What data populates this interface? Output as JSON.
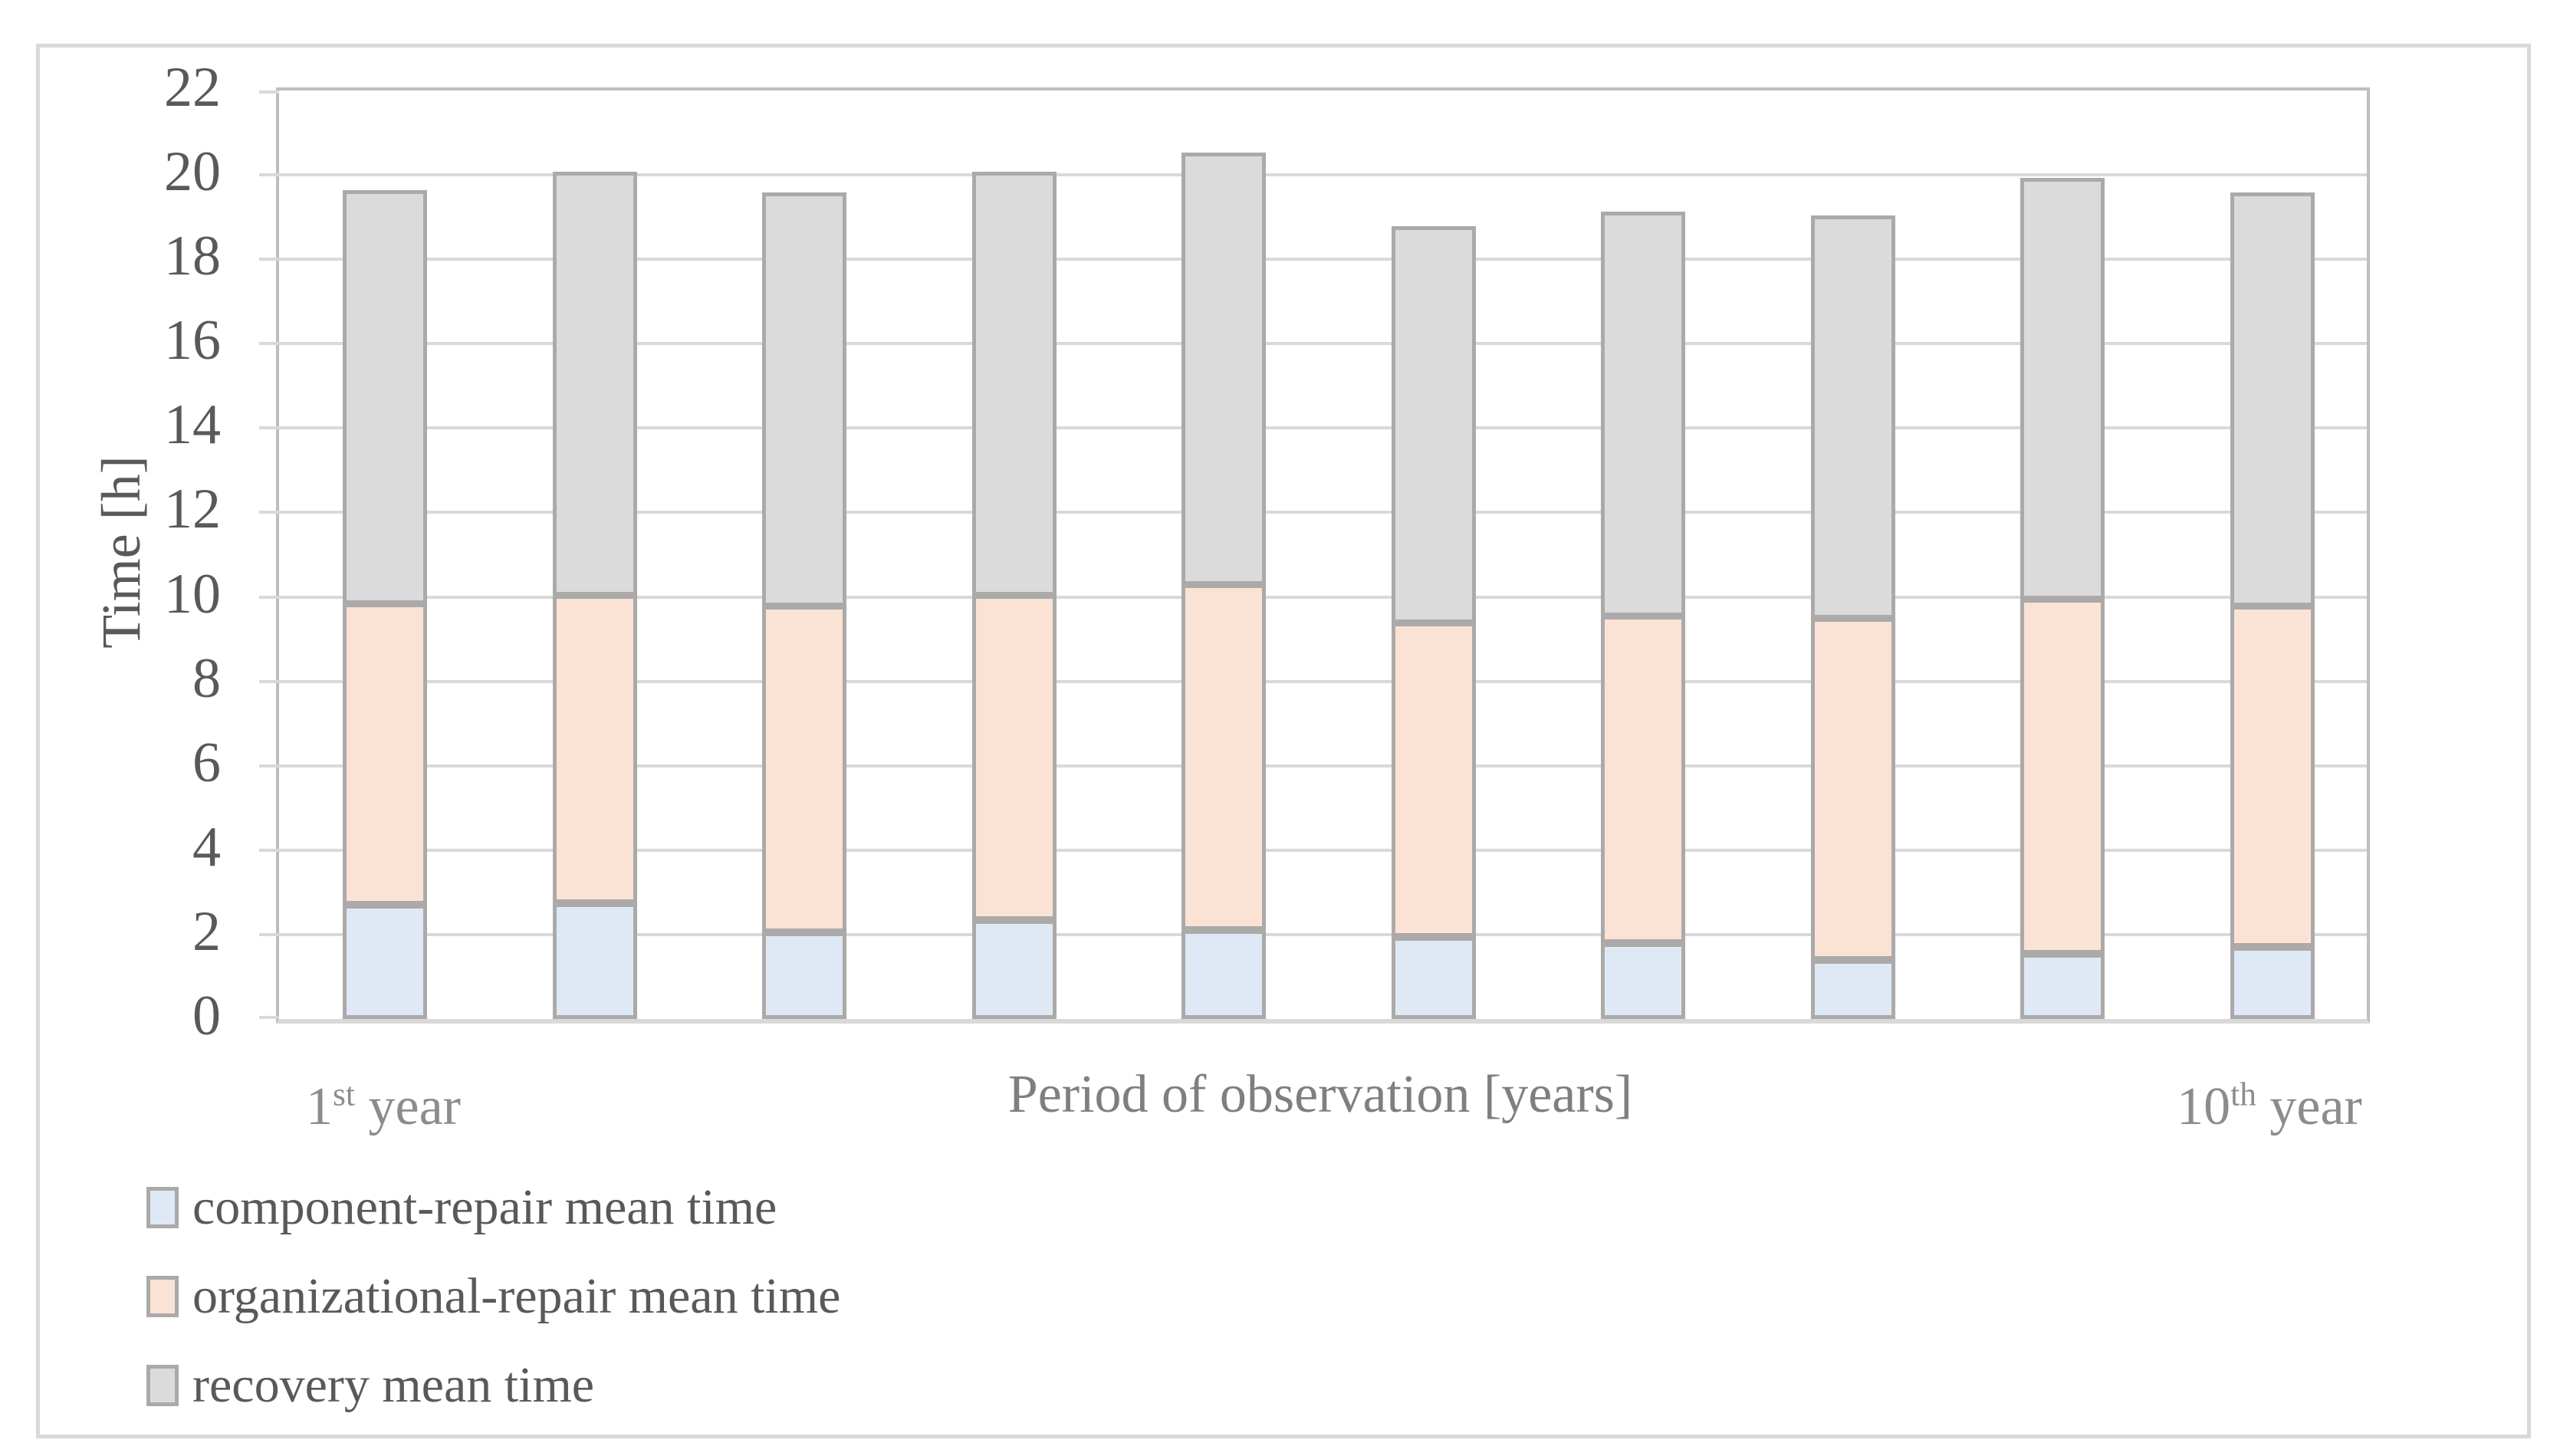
{
  "figure": {
    "background": "#FFFFFF",
    "border_color": "#D9D9D9"
  },
  "chart_data": {
    "type": "bar",
    "stacked": true,
    "orientation": "vertical",
    "ylabel": "Time [h]",
    "xlabel": "Period of observation [years]",
    "ylim": [
      0,
      22
    ],
    "ytick_step": 2,
    "ytick_labels": [
      "0",
      "2",
      "4",
      "6",
      "8",
      "10",
      "12",
      "14",
      "16",
      "18",
      "20",
      "22"
    ],
    "grid": true,
    "n_bars": 10,
    "x_axis_labels": {
      "first": {
        "number": "1",
        "ordinal": "st",
        "suffix": " year"
      },
      "last": {
        "number": "10",
        "ordinal": "th",
        "suffix": " year"
      }
    },
    "series": [
      {
        "name": "component-repair mean time",
        "color": "#DEE9F5",
        "values": [
          2.7,
          2.75,
          2.05,
          2.35,
          2.1,
          1.95,
          1.8,
          1.4,
          1.55,
          1.7
        ]
      },
      {
        "name": "organizational-repair mean time",
        "color": "#FAE3D5",
        "values": [
          7.15,
          7.3,
          7.75,
          7.7,
          8.2,
          7.45,
          7.75,
          8.1,
          8.4,
          8.1
        ]
      },
      {
        "name": "recovery mean time",
        "color": "#DBDBDB",
        "values": [
          9.8,
          10.05,
          9.8,
          10.05,
          10.25,
          9.4,
          9.6,
          9.55,
          10.0,
          9.8
        ]
      }
    ],
    "stacked_totals": [
      19.65,
      20.1,
      19.6,
      20.1,
      20.55,
      18.8,
      19.15,
      19.05,
      19.95,
      19.6
    ],
    "legend_position": "bottom-left"
  },
  "colors": {
    "bar_border": "#ACA9A9",
    "gridline": "#D9D9D9",
    "plot_border": "#BFBCBC",
    "axis_bottom": "#D9D9D9",
    "tick_text": "#595959",
    "axis_title_text": "#595959",
    "x_title_text": "#7F7F7F",
    "x_year_text": "#8C8C8C",
    "legend_text": "#595959"
  }
}
